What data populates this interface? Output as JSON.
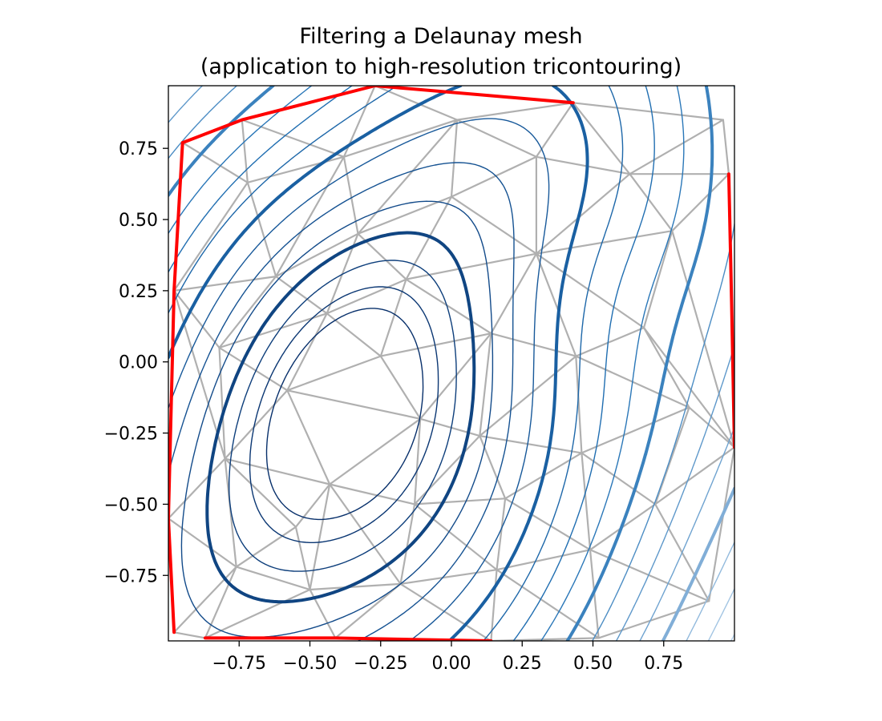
{
  "chart_data": {
    "type": "tricontour",
    "title": "Filtering a Delaunay mesh\n(application to high-resolution tricontouring)",
    "title_lines": [
      "Filtering a Delaunay mesh",
      "(application to high-resolution tricontouring)"
    ],
    "xlabel": "",
    "ylabel": "",
    "xlim": [
      -1.0,
      1.0
    ],
    "ylim": [
      -0.98,
      0.97
    ],
    "x_ticks": [
      -0.75,
      -0.5,
      -0.25,
      0.0,
      0.25,
      0.5,
      0.75
    ],
    "y_ticks": [
      -0.75,
      -0.5,
      -0.25,
      0.0,
      0.25,
      0.5,
      0.75
    ],
    "x_tick_labels": [
      "−0.75",
      "−0.50",
      "−0.25",
      "0.00",
      "0.25",
      "0.50",
      "0.75"
    ],
    "y_tick_labels": [
      "−0.75",
      "−0.50",
      "−0.25",
      "0.00",
      "0.25",
      "0.50",
      "0.75"
    ],
    "grid": false,
    "colors": {
      "mesh": "#b0b0b0",
      "masked_triangles": "#ff0000",
      "colormap": "Blues",
      "contour_dark": "#08306b",
      "contour_mid": "#2171b5",
      "contour_light": "#9ecae1"
    },
    "series": [
      {
        "kind": "mesh",
        "points": [
          [
            -0.95,
            0.77
          ],
          [
            -0.74,
            0.85
          ],
          [
            -0.27,
            0.97
          ],
          [
            0.43,
            0.91
          ],
          [
            0.96,
            0.85
          ],
          [
            0.98,
            0.66
          ],
          [
            1.0,
            -0.3
          ],
          [
            0.91,
            -0.84
          ],
          [
            0.52,
            -0.97
          ],
          [
            0.14,
            -0.98
          ],
          [
            -0.41,
            -0.97
          ],
          [
            -0.87,
            -0.97
          ],
          [
            -0.98,
            -0.95
          ],
          [
            -1.0,
            -0.55
          ],
          [
            -0.98,
            0.25
          ],
          [
            -0.72,
            0.63
          ],
          [
            -0.38,
            0.72
          ],
          [
            0.02,
            0.85
          ],
          [
            0.3,
            0.72
          ],
          [
            0.63,
            0.66
          ],
          [
            0.78,
            0.46
          ],
          [
            0.68,
            0.12
          ],
          [
            0.84,
            -0.16
          ],
          [
            0.72,
            -0.5
          ],
          [
            0.49,
            -0.66
          ],
          [
            0.16,
            -0.73
          ],
          [
            -0.18,
            -0.78
          ],
          [
            -0.5,
            -0.8
          ],
          [
            -0.76,
            -0.72
          ],
          [
            -0.8,
            -0.34
          ],
          [
            -0.82,
            0.05
          ],
          [
            -0.62,
            0.3
          ],
          [
            -0.33,
            0.45
          ],
          [
            0.0,
            0.58
          ],
          [
            0.3,
            0.38
          ],
          [
            0.44,
            0.02
          ],
          [
            0.46,
            -0.32
          ],
          [
            0.19,
            -0.48
          ],
          [
            -0.13,
            -0.5
          ],
          [
            -0.43,
            -0.43
          ],
          [
            -0.58,
            -0.1
          ],
          [
            -0.44,
            0.17
          ],
          [
            -0.16,
            0.29
          ],
          [
            0.14,
            0.1
          ],
          [
            -0.11,
            -0.2
          ],
          [
            -0.25,
            0.02
          ],
          [
            -0.55,
            -0.58
          ],
          [
            0.1,
            -0.26
          ]
        ],
        "triangles": [
          [
            0,
            1,
            15
          ],
          [
            1,
            16,
            15
          ],
          [
            1,
            2,
            16
          ],
          [
            2,
            17,
            16
          ],
          [
            2,
            3,
            17
          ],
          [
            3,
            18,
            17
          ],
          [
            3,
            19,
            18
          ],
          [
            3,
            4,
            19
          ],
          [
            4,
            5,
            19
          ],
          [
            5,
            20,
            19
          ],
          [
            5,
            6,
            20
          ],
          [
            6,
            21,
            20
          ],
          [
            6,
            22,
            21
          ],
          [
            6,
            23,
            22
          ],
          [
            6,
            7,
            23
          ],
          [
            7,
            24,
            23
          ],
          [
            7,
            8,
            24
          ],
          [
            8,
            25,
            24
          ],
          [
            8,
            9,
            25
          ],
          [
            9,
            26,
            25
          ],
          [
            9,
            10,
            26
          ],
          [
            10,
            27,
            26
          ],
          [
            10,
            11,
            27
          ],
          [
            11,
            28,
            27
          ],
          [
            11,
            12,
            28
          ],
          [
            12,
            13,
            28
          ],
          [
            13,
            29,
            28
          ],
          [
            13,
            14,
            29
          ],
          [
            14,
            30,
            29
          ],
          [
            14,
            31,
            30
          ],
          [
            14,
            15,
            31
          ],
          [
            14,
            0,
            15
          ],
          [
            15,
            16,
            31
          ],
          [
            16,
            32,
            31
          ],
          [
            16,
            17,
            32
          ],
          [
            17,
            33,
            32
          ],
          [
            17,
            18,
            33
          ],
          [
            18,
            34,
            33
          ],
          [
            18,
            19,
            34
          ],
          [
            19,
            20,
            34
          ],
          [
            20,
            21,
            34
          ],
          [
            21,
            35,
            34
          ],
          [
            21,
            22,
            35
          ],
          [
            22,
            36,
            35
          ],
          [
            22,
            23,
            36
          ],
          [
            23,
            24,
            36
          ],
          [
            24,
            37,
            36
          ],
          [
            24,
            25,
            37
          ],
          [
            25,
            38,
            37
          ],
          [
            25,
            26,
            38
          ],
          [
            26,
            39,
            38
          ],
          [
            26,
            27,
            39
          ],
          [
            27,
            46,
            39
          ],
          [
            27,
            28,
            46
          ],
          [
            28,
            29,
            46
          ],
          [
            29,
            39,
            46
          ],
          [
            29,
            40,
            39
          ],
          [
            29,
            30,
            40
          ],
          [
            30,
            41,
            40
          ],
          [
            30,
            31,
            41
          ],
          [
            31,
            32,
            41
          ],
          [
            32,
            42,
            41
          ],
          [
            32,
            33,
            42
          ],
          [
            33,
            34,
            42
          ],
          [
            34,
            43,
            42
          ],
          [
            34,
            35,
            43
          ],
          [
            35,
            47,
            43
          ],
          [
            35,
            36,
            47
          ],
          [
            36,
            37,
            47
          ],
          [
            37,
            38,
            47
          ],
          [
            38,
            44,
            47
          ],
          [
            38,
            39,
            44
          ],
          [
            39,
            40,
            44
          ],
          [
            40,
            45,
            44
          ],
          [
            40,
            41,
            45
          ],
          [
            41,
            42,
            45
          ],
          [
            42,
            43,
            45
          ],
          [
            43,
            44,
            45
          ],
          [
            43,
            47,
            44
          ]
        ]
      },
      {
        "kind": "masked_boundary",
        "polylines": [
          [
            [
              -0.95,
              0.77
            ],
            [
              -0.74,
              0.85
            ],
            [
              -0.27,
              0.97
            ],
            [
              0.43,
              0.91
            ]
          ],
          [
            [
              0.98,
              0.66
            ],
            [
              0.99,
              0.2
            ],
            [
              1.0,
              -0.3
            ]
          ],
          [
            [
              -0.98,
              -0.95
            ],
            [
              -1.0,
              -0.55
            ],
            [
              -0.98,
              0.25
            ],
            [
              -0.95,
              0.77
            ]
          ],
          [
            [
              -0.87,
              -0.97
            ],
            [
              -0.41,
              -0.97
            ],
            [
              0.14,
              -0.98
            ]
          ]
        ]
      },
      {
        "kind": "contours",
        "field_center": [
          -0.35,
          -0.25
        ],
        "field_matrix": [
          [
            2.4,
            -0.9
          ],
          [
            -0.9,
            1.3
          ]
        ],
        "swirl": 0.22,
        "levels": [
          0.06,
          0.16,
          0.3,
          0.46,
          0.65,
          0.88,
          1.14,
          1.43,
          1.75,
          2.1,
          2.48,
          2.9,
          3.35,
          3.83,
          4.35,
          4.9,
          5.5,
          6.1,
          6.75,
          7.45
        ],
        "bold_every": 4
      }
    ]
  }
}
